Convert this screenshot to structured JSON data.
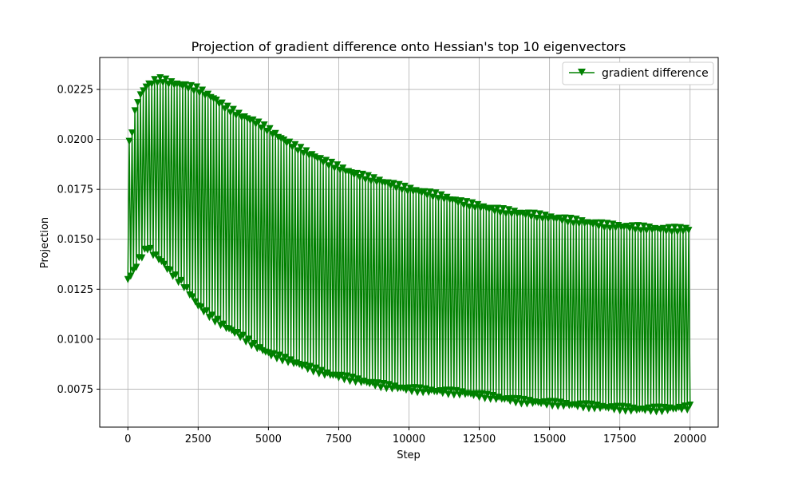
{
  "chart_data": {
    "type": "line",
    "title": "Projection of gradient difference onto Hessian's top 10 eigenvectors",
    "xlabel": "Step",
    "ylabel": "Projection",
    "xlim": [
      -1000,
      21000
    ],
    "ylim": [
      0.0056,
      0.0241
    ],
    "xticks": [
      0,
      2500,
      5000,
      7500,
      10000,
      12500,
      15000,
      17500,
      20000
    ],
    "yticks": [
      0.0075,
      0.01,
      0.0125,
      0.015,
      0.0175,
      0.02,
      0.0225
    ],
    "xtick_labels": [
      "0",
      "2500",
      "5000",
      "7500",
      "10000",
      "12500",
      "15000",
      "17500",
      "20000"
    ],
    "ytick_labels": [
      "0.0075",
      "0.0100",
      "0.0125",
      "0.0150",
      "0.0175",
      "0.0200",
      "0.0225"
    ],
    "grid": true,
    "legend_position": "top-right",
    "series": [
      {
        "name": "gradient difference",
        "color": "#008000",
        "marker": "triangle-down",
        "pattern": "alternating upper and lower envelope every 50 steps",
        "x_start": 0,
        "x_end": 20000,
        "x_step": 50,
        "upper_envelope": {
          "x": [
            0,
            100,
            300,
            600,
            900,
            1200,
            1600,
            2000,
            2500,
            3000,
            3500,
            4000,
            4500,
            5000,
            5500,
            6000,
            7000,
            8000,
            9000,
            10000,
            11000,
            12000,
            13000,
            14000,
            15000,
            16000,
            17000,
            18000,
            19000,
            20000
          ],
          "y": [
            0.0196,
            0.02,
            0.0218,
            0.0226,
            0.0229,
            0.023,
            0.0228,
            0.0227,
            0.0225,
            0.0221,
            0.0216,
            0.0212,
            0.0209,
            0.0205,
            0.02,
            0.0196,
            0.0189,
            0.0183,
            0.0179,
            0.0175,
            0.0172,
            0.0168,
            0.0165,
            0.0163,
            0.0161,
            0.0159,
            0.0157,
            0.0156,
            0.0155,
            0.0155
          ]
        },
        "lower_envelope": {
          "x": [
            0,
            200,
            400,
            700,
            900,
            1200,
            1500,
            2000,
            2500,
            3000,
            3500,
            4000,
            4500,
            5000,
            6000,
            7000,
            8000,
            9000,
            10000,
            11000,
            12000,
            13000,
            14000,
            15000,
            16000,
            17000,
            18000,
            19000,
            20000
          ],
          "y": [
            0.013,
            0.0134,
            0.014,
            0.0146,
            0.0143,
            0.0139,
            0.0134,
            0.0127,
            0.0117,
            0.0111,
            0.0106,
            0.0102,
            0.0097,
            0.0093,
            0.0088,
            0.0083,
            0.008,
            0.0077,
            0.0075,
            0.0074,
            0.0073,
            0.0071,
            0.0069,
            0.0068,
            0.0067,
            0.0066,
            0.0065,
            0.0065,
            0.0066
          ]
        }
      }
    ]
  }
}
